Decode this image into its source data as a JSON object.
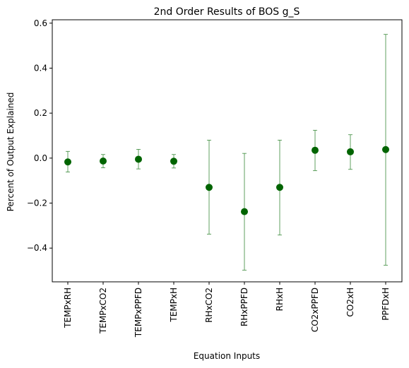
{
  "chart_data": {
    "type": "scatter",
    "title": "2nd Order Results of BOS g_S",
    "xlabel": "Equation Inputs",
    "ylabel": "Percent of Output Explained",
    "categories": [
      "TEMPxRH",
      "TEMPxCO2",
      "TEMPxPPFD",
      "TEMPxH",
      "RHxCO2",
      "RHxPPFD",
      "RHxH",
      "CO2xPPFD",
      "CO2xH",
      "PPFDxH"
    ],
    "values": [
      -0.017,
      -0.013,
      -0.005,
      -0.014,
      -0.13,
      -0.238,
      -0.13,
      0.035,
      0.028,
      0.038
    ],
    "error_lower": [
      -0.062,
      -0.043,
      -0.048,
      -0.044,
      -0.338,
      -0.498,
      -0.342,
      -0.056,
      -0.05,
      -0.476
    ],
    "error_upper": [
      0.03,
      0.016,
      0.039,
      0.016,
      0.08,
      0.021,
      0.08,
      0.124,
      0.104,
      0.55
    ],
    "ylim": [
      -0.55,
      0.615
    ],
    "yticks": [
      -0.4,
      -0.2,
      0.0,
      0.2,
      0.4,
      0.6
    ],
    "ytick_labels": [
      "−0.4",
      "−0.2",
      "0.0",
      "0.2",
      "0.4",
      "0.6"
    ],
    "marker_color": "#006400",
    "errorbar_color": "#3a8a3a",
    "grid": false
  }
}
